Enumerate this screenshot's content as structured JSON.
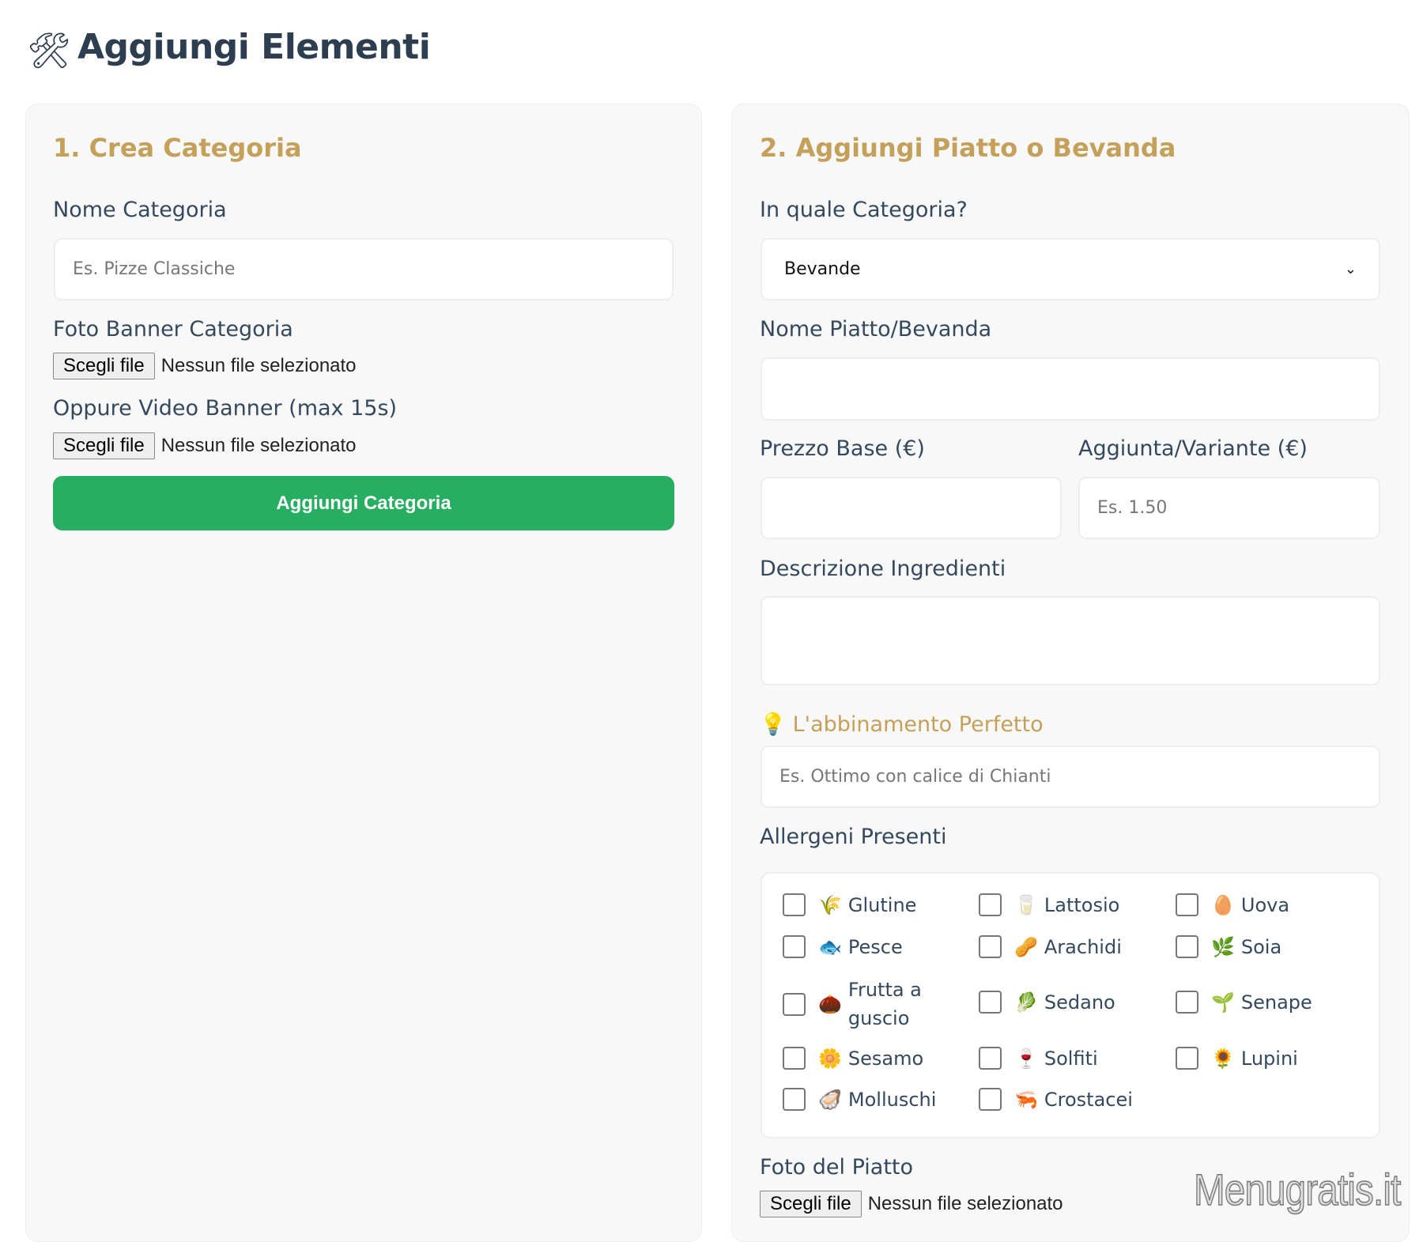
{
  "header": {
    "title": "Aggiungi Elementi",
    "icon": "hammer-and-wrench-icon"
  },
  "category_card": {
    "heading": "1. Crea Categoria",
    "name_label": "Nome Categoria",
    "name_placeholder": "Es. Pizze Classiche",
    "photo_label": "Foto Banner Categoria",
    "video_label": "Oppure Video Banner (max 15s)",
    "file_button": "Scegli file",
    "no_file": "Nessun file selezionato",
    "submit": "Aggiungi Categoria",
    "submit_color": "#27ae60"
  },
  "item_card": {
    "heading": "2. Aggiungi Piatto o Bevanda",
    "category_label": "In quale Categoria?",
    "category_selected": "Bevande",
    "name_label": "Nome Piatto/Bevanda",
    "price_label": "Prezzo Base (€)",
    "variant_label": "Aggiunta/Variante (€)",
    "variant_placeholder": "Es. 1.50",
    "desc_label": "Descrizione Ingredienti",
    "pairing_label": "L'abbinamento Perfetto",
    "pairing_icon": "light-bulb-icon",
    "pairing_placeholder": "Es. Ottimo con calice di Chianti",
    "allergens_label": "Allergeni Presenti",
    "allergens": [
      {
        "label": "Glutine",
        "icon": "wheat-icon"
      },
      {
        "label": "Lattosio",
        "icon": "milk-glass-icon"
      },
      {
        "label": "Uova",
        "icon": "egg-icon"
      },
      {
        "label": "Pesce",
        "icon": "fish-icon"
      },
      {
        "label": "Arachidi",
        "icon": "peanut-icon"
      },
      {
        "label": "Soia",
        "icon": "herb-icon"
      },
      {
        "label": "Frutta a guscio",
        "icon": "chestnut-icon"
      },
      {
        "label": "Sedano",
        "icon": "celery-icon"
      },
      {
        "label": "Senape",
        "icon": "seedling-icon"
      },
      {
        "label": "Sesamo",
        "icon": "flower-icon"
      },
      {
        "label": "Solfiti",
        "icon": "wine-glass-icon"
      },
      {
        "label": "Lupini",
        "icon": "sunflower-icon"
      },
      {
        "label": "Molluschi",
        "icon": "oyster-icon"
      },
      {
        "label": "Crostacei",
        "icon": "shrimp-icon"
      }
    ],
    "photo_label": "Foto del Piatto",
    "file_button": "Scegli file",
    "no_file": "Nessun file selezionato"
  },
  "accent_color": "#c5a05a",
  "watermark": "Menugratis.it"
}
